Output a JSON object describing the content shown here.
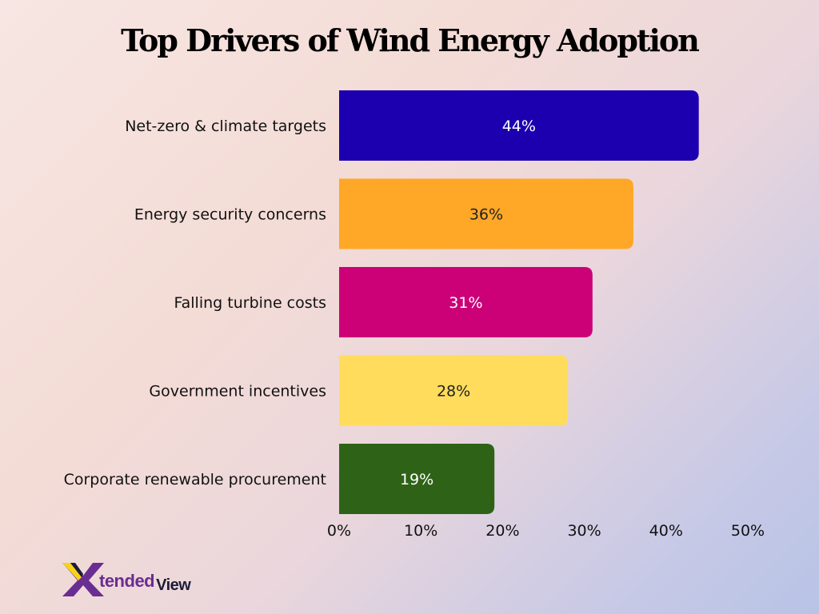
{
  "chart_data": {
    "type": "bar",
    "orientation": "horizontal",
    "title": "Top Drivers of Wind Energy Adoption",
    "categories": [
      "Net-zero & climate targets",
      "Energy security concerns",
      "Falling turbine costs",
      "Government incentives",
      "Corporate renewable procurement"
    ],
    "values": [
      44,
      36,
      31,
      28,
      19
    ],
    "value_labels": [
      "44%",
      "36%",
      "31%",
      "28%",
      "19%"
    ],
    "bar_colors": [
      "#1c00b0",
      "#ffa726",
      "#cc0077",
      "#ffdc5c",
      "#2e6317"
    ],
    "value_label_colors": [
      "#ffffff",
      "#222222",
      "#ffffff",
      "#222222",
      "#ffffff"
    ],
    "xlim": [
      0,
      50
    ],
    "xticks": [
      0,
      10,
      20,
      30,
      40,
      50
    ],
    "xtick_labels": [
      "0%",
      "10%",
      "20%",
      "30%",
      "40%",
      "50%"
    ],
    "grid": false,
    "legend": "none"
  },
  "branding": {
    "logo_part1": "tended",
    "logo_part2": "View",
    "accent_color": "#6a2d91"
  }
}
